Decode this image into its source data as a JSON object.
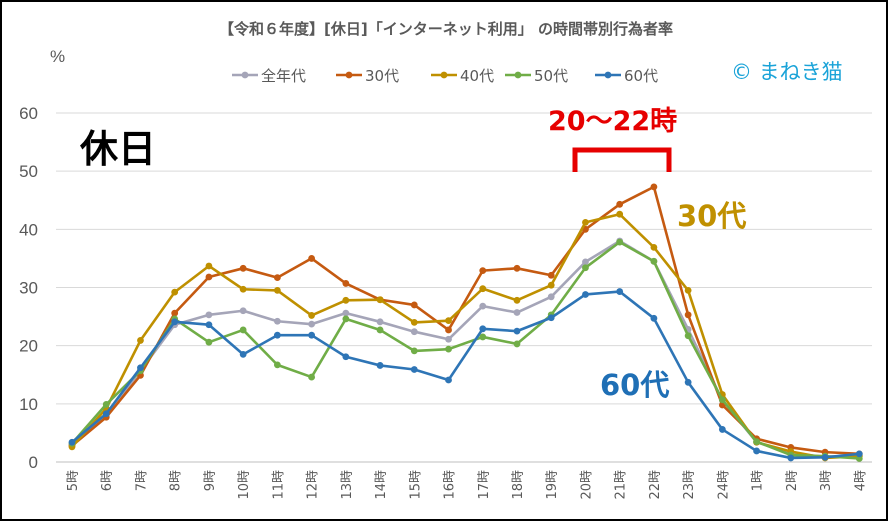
{
  "chart_data": {
    "type": "line",
    "title": "【令和６年度】[休日]「インターネット利用」 の時間帯別行為者率",
    "ylabel": "%",
    "xlabel": "",
    "ylim": [
      0,
      60
    ],
    "yticks": [
      0,
      10,
      20,
      30,
      40,
      50,
      60
    ],
    "grid": true,
    "legend_position": "top",
    "categories": [
      "5時",
      "6時",
      "7時",
      "8時",
      "9時",
      "10時",
      "11時",
      "12時",
      "13時",
      "14時",
      "15時",
      "16時",
      "17時",
      "18時",
      "19時",
      "20時",
      "21時",
      "22時",
      "23時",
      "24時",
      "1時",
      "2時",
      "3時",
      "4時"
    ],
    "series": [
      {
        "name": "全年代",
        "color": "#a5a5b8",
        "values": [
          3.0,
          8.0,
          15.7,
          23.6,
          25.3,
          26.0,
          24.2,
          23.7,
          25.6,
          24.1,
          22.4,
          21.1,
          26.8,
          25.7,
          28.4,
          34.4,
          38.0,
          34.5,
          22.8,
          10.6,
          3.4,
          1.5,
          0.9,
          1.1
        ]
      },
      {
        "name": "30代",
        "color": "#c55a11",
        "values": [
          2.8,
          7.7,
          14.9,
          25.6,
          31.8,
          33.3,
          31.7,
          35.0,
          30.7,
          27.9,
          27.0,
          22.7,
          32.9,
          33.3,
          32.1,
          40.0,
          44.3,
          47.3,
          25.3,
          9.8,
          4.0,
          2.5,
          1.7,
          1.4
        ]
      },
      {
        "name": "40代",
        "color": "#bf9000",
        "values": [
          2.6,
          9.2,
          20.9,
          29.2,
          33.7,
          29.7,
          29.5,
          25.2,
          27.8,
          27.9,
          24.0,
          24.3,
          29.8,
          27.8,
          30.4,
          41.2,
          42.6,
          36.9,
          29.5,
          11.6,
          3.4,
          1.8,
          0.7,
          1.0
        ]
      },
      {
        "name": "50代",
        "color": "#70ad47",
        "values": [
          3.2,
          9.9,
          15.7,
          24.6,
          20.6,
          22.7,
          16.7,
          14.6,
          24.6,
          22.7,
          19.1,
          19.4,
          21.5,
          20.3,
          25.3,
          33.4,
          37.8,
          34.5,
          21.7,
          10.7,
          3.5,
          1.2,
          1.0,
          0.6
        ]
      },
      {
        "name": "60代",
        "color": "#2e75b6",
        "values": [
          3.4,
          8.3,
          16.2,
          24.1,
          23.6,
          18.5,
          21.8,
          21.8,
          18.1,
          16.6,
          15.9,
          14.1,
          22.9,
          22.5,
          24.8,
          28.8,
          29.3,
          24.7,
          13.7,
          5.6,
          1.9,
          0.7,
          0.8,
          1.4
        ]
      }
    ],
    "annotations": {
      "day_label": "休日",
      "peak_label": "20～22時",
      "label_30s": "30代",
      "label_60s": "60代",
      "copyright": "© まねき猫"
    }
  }
}
